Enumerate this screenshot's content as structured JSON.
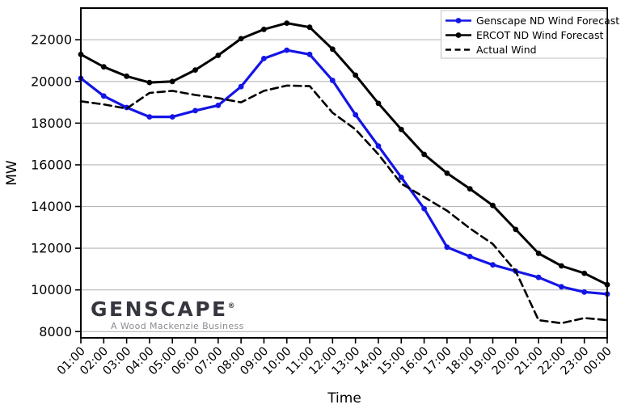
{
  "logo": {
    "brand": "GENSCAPE",
    "registered_mark": "®",
    "tagline": "A Wood Mackenzie Business"
  },
  "chart_data": {
    "type": "line",
    "title": "",
    "xlabel": "Time",
    "ylabel": "MW",
    "grid": "horizontal-only",
    "grid_color": "#b8b8b8",
    "legend_position": "upper-right",
    "x_tick_rotation_deg": 45,
    "ylim": [
      7700,
      23520
    ],
    "yticks": [
      8000,
      10000,
      12000,
      14000,
      16000,
      18000,
      20000,
      22000
    ],
    "categories": [
      "01:00",
      "02:00",
      "03:00",
      "04:00",
      "05:00",
      "06:00",
      "07:00",
      "08:00",
      "09:00",
      "10:00",
      "11:00",
      "12:00",
      "13:00",
      "14:00",
      "15:00",
      "16:00",
      "17:00",
      "18:00",
      "19:00",
      "20:00",
      "21:00",
      "22:00",
      "23:00",
      "00:00"
    ],
    "series": [
      {
        "name": "Genscape ND Wind Forecast",
        "color": "#1414e6",
        "line_style": "solid",
        "marker": "circle",
        "values": [
          20150,
          19300,
          18750,
          18300,
          18300,
          18600,
          18850,
          19750,
          21100,
          21500,
          21300,
          20050,
          18400,
          16900,
          15400,
          13900,
          12050,
          11600,
          11200,
          10900,
          10600,
          10150,
          9900,
          9800
        ]
      },
      {
        "name": "ERCOT ND Wind Forecast",
        "color": "#000000",
        "line_style": "solid",
        "marker": "circle",
        "values": [
          21300,
          20700,
          20250,
          19950,
          20000,
          20550,
          21250,
          22050,
          22500,
          22800,
          22600,
          21550,
          20300,
          18950,
          17700,
          16500,
          15600,
          14850,
          14050,
          12900,
          11750,
          11150,
          10800,
          10250
        ]
      },
      {
        "name": "Actual Wind",
        "color": "#000000",
        "line_style": "dashed",
        "marker": "none",
        "values": [
          19050,
          18900,
          18700,
          19450,
          19550,
          19350,
          19200,
          19000,
          19550,
          19800,
          19780,
          18500,
          17700,
          16500,
          15100,
          14450,
          13800,
          12950,
          12200,
          10900,
          8550,
          8400,
          8650,
          8550
        ]
      }
    ]
  }
}
